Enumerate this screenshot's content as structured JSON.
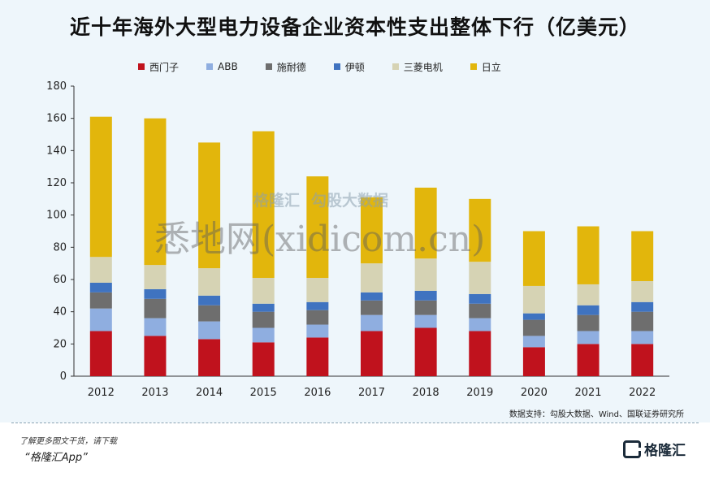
{
  "title": "近十年海外大型电力设备企业资本性支出整体下行（亿美元）",
  "source": "数据支持：勾股大数据、Wind、国联证券研究所",
  "footer": {
    "hint": "了解更多图文干货，请下载",
    "app": "“格隆汇App”",
    "brand": "格隆汇"
  },
  "watermarks": {
    "logo_text": "格隆汇",
    "db_text": "勾股大数据",
    "site": "悉地网(xidicom.cn)"
  },
  "chart_data": {
    "type": "bar",
    "stacked": true,
    "categories": [
      "2012",
      "2013",
      "2014",
      "2015",
      "2016",
      "2017",
      "2018",
      "2019",
      "2020",
      "2021",
      "2022"
    ],
    "ylim": [
      0,
      180
    ],
    "yticks": [
      0,
      20,
      40,
      60,
      80,
      100,
      120,
      140,
      160,
      180
    ],
    "legend_position": "top",
    "series": [
      {
        "name": "西门子",
        "color": "#c0121d",
        "values": [
          28,
          25,
          23,
          21,
          24,
          28,
          30,
          28,
          18,
          20,
          20
        ]
      },
      {
        "name": "ABB",
        "color": "#8faee0",
        "values": [
          14,
          11,
          11,
          9,
          8,
          10,
          8,
          8,
          7,
          8,
          8
        ]
      },
      {
        "name": "施耐德",
        "color": "#6e6e6e",
        "values": [
          10,
          12,
          10,
          10,
          9,
          9,
          9,
          9,
          10,
          10,
          12
        ]
      },
      {
        "name": "伊顿",
        "color": "#3f73c0",
        "values": [
          6,
          6,
          6,
          5,
          5,
          5,
          6,
          6,
          4,
          6,
          6
        ]
      },
      {
        "name": "三菱电机",
        "color": "#d6d3b4",
        "values": [
          16,
          15,
          17,
          16,
          15,
          18,
          20,
          20,
          17,
          13,
          13
        ]
      },
      {
        "name": "日立",
        "color": "#e2b60c",
        "values": [
          87,
          91,
          78,
          91,
          63,
          41,
          44,
          39,
          34,
          36,
          31
        ]
      }
    ]
  }
}
